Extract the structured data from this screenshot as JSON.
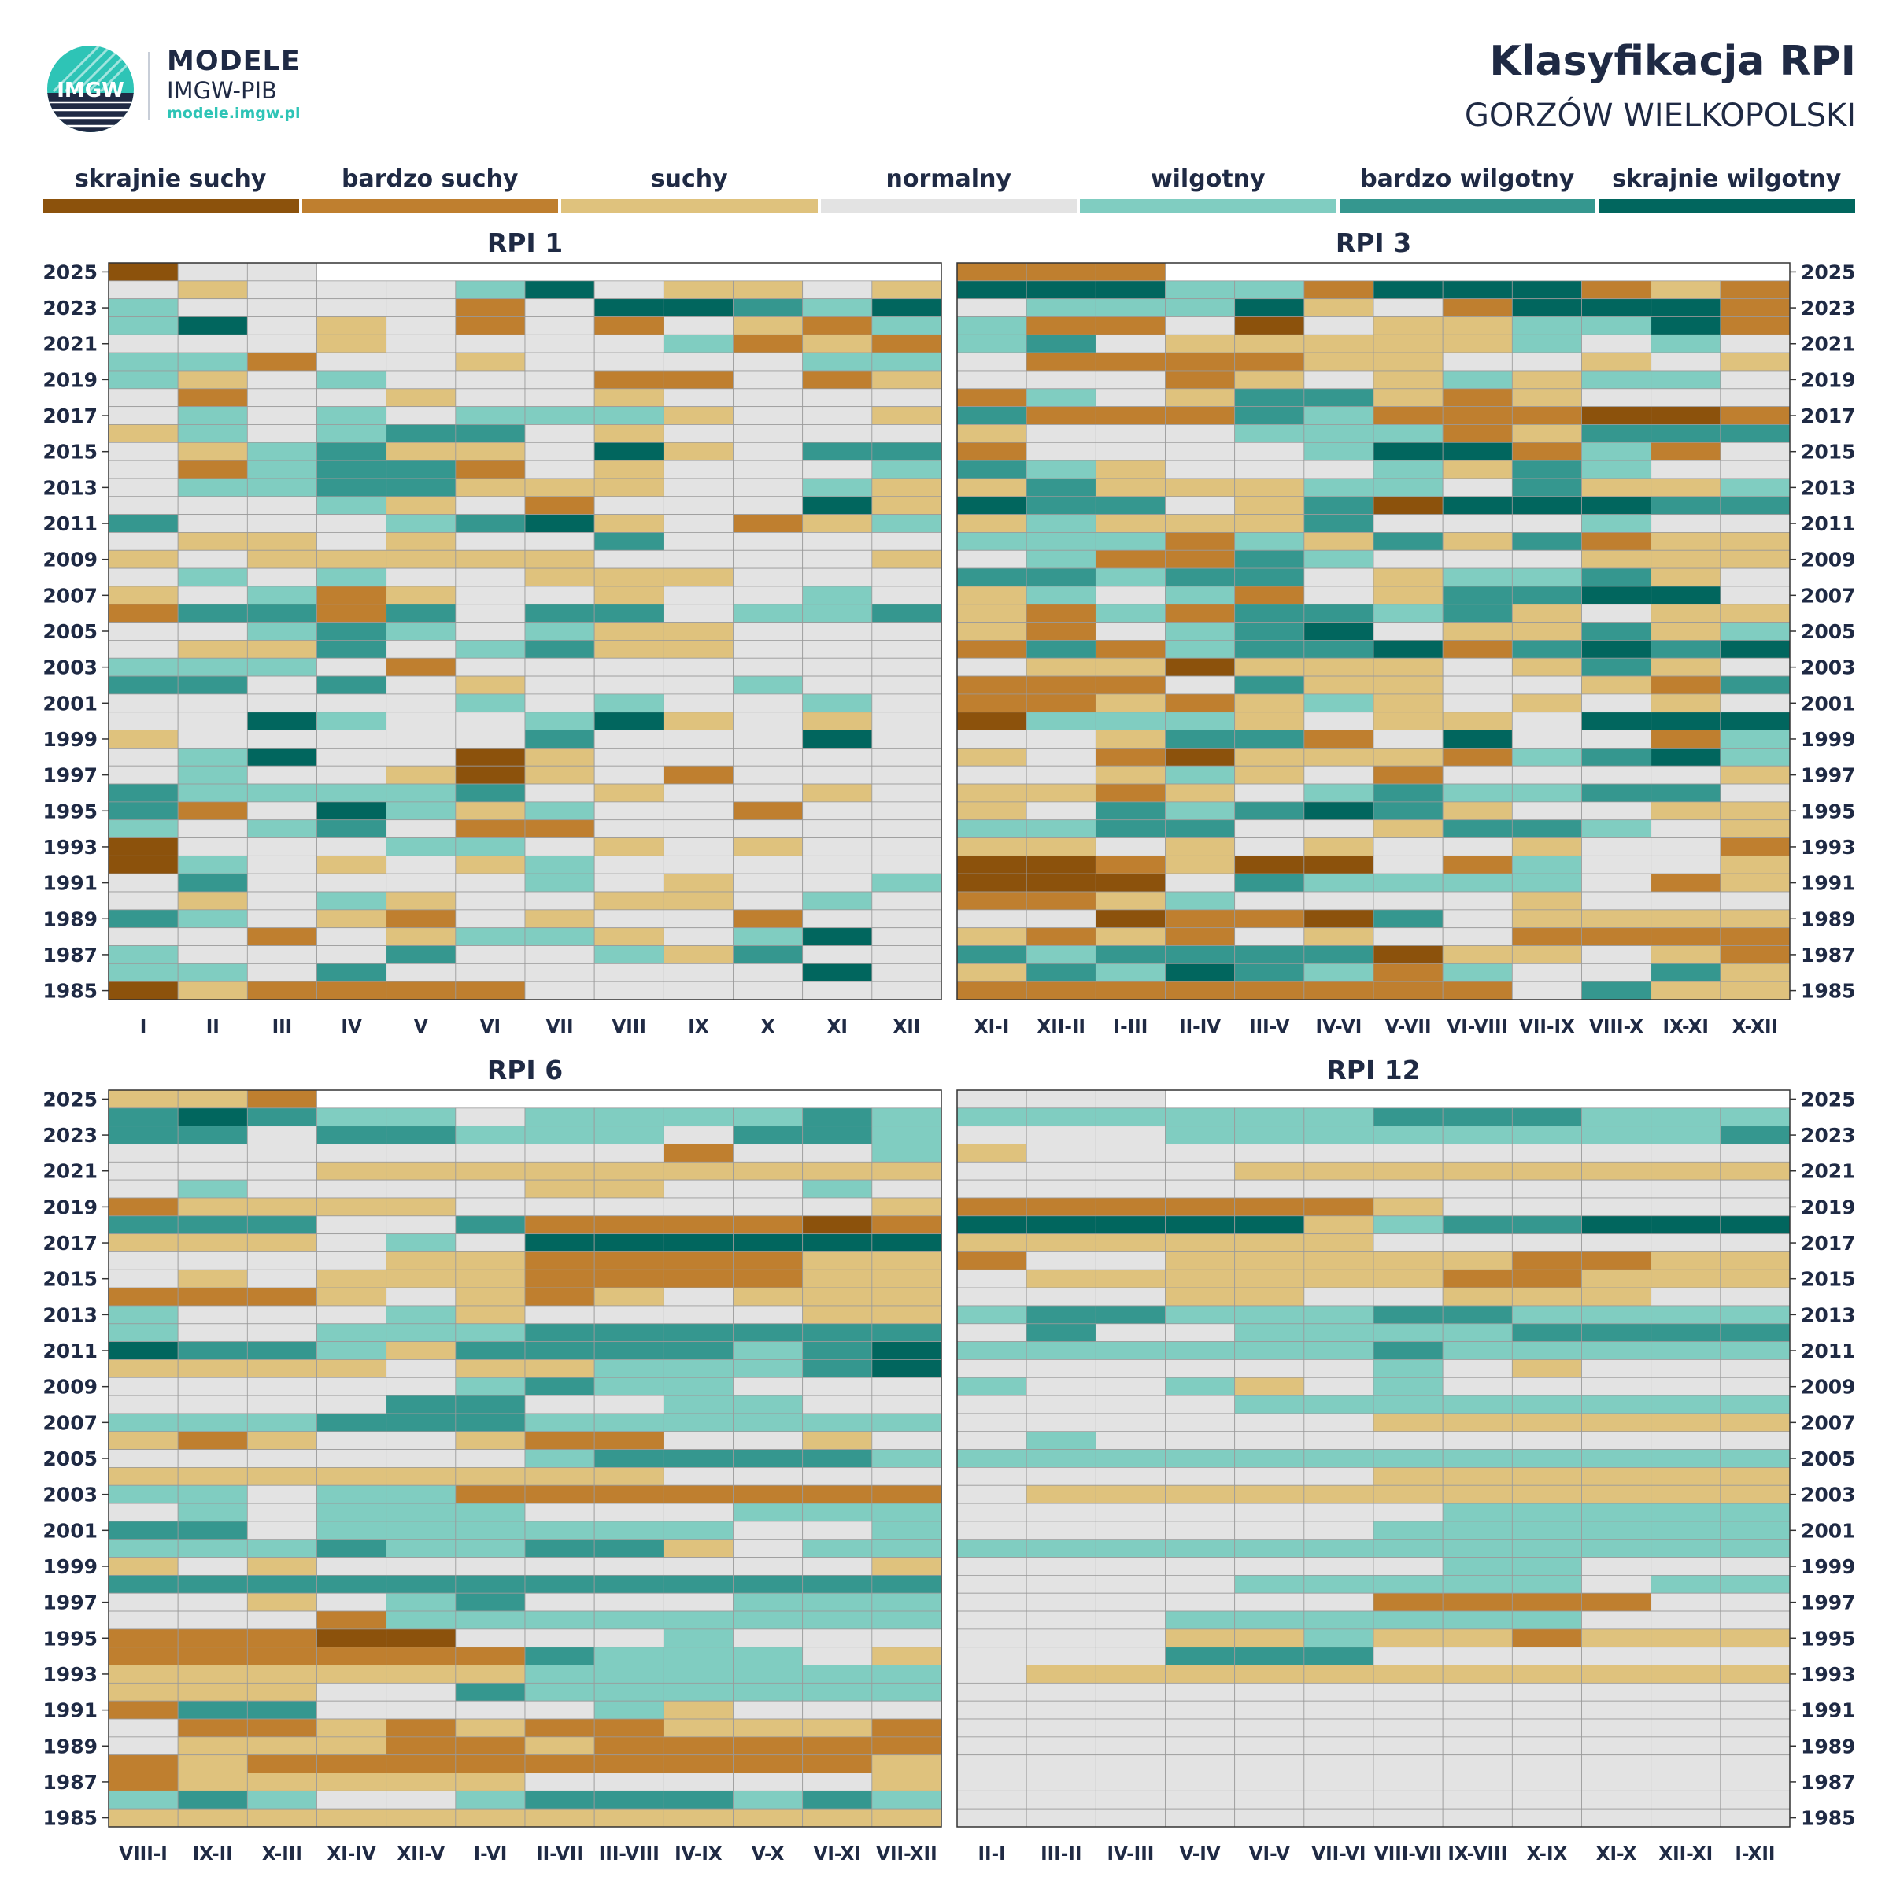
{
  "header": {
    "brand_title": "MODELE",
    "brand_subtitle": "IMGW-PIB",
    "brand_url": "modele.imgw.pl",
    "logo_text": "IMGW",
    "title": "Klasyfikacja RPI",
    "subtitle": "GORZÓW WIELKOPOLSKI"
  },
  "legend": [
    {
      "label": "skrajnie suchy",
      "color": "#8c520c"
    },
    {
      "label": "bardzo suchy",
      "color": "#bf7f2f"
    },
    {
      "label": "suchy",
      "color": "#dfc27d"
    },
    {
      "label": "normalny",
      "color": "#e3e3e3"
    },
    {
      "label": "wilgotny",
      "color": "#80cdc1"
    },
    {
      "label": "bardzo wilgotny",
      "color": "#35978f"
    },
    {
      "label": "skrajnie wilgotny",
      "color": "#01665e"
    }
  ],
  "chart_data": [
    {
      "type": "heatmap",
      "title": "RPI 1",
      "x_labels": [
        "I",
        "II",
        "III",
        "IV",
        "V",
        "VI",
        "VII",
        "VIII",
        "IX",
        "X",
        "XI",
        "XII"
      ],
      "years": [
        1985,
        1986,
        1987,
        1988,
        1989,
        1990,
        1991,
        1992,
        1993,
        1994,
        1995,
        1996,
        1997,
        1998,
        1999,
        2000,
        2001,
        2002,
        2003,
        2004,
        2005,
        2006,
        2007,
        2008,
        2009,
        2010,
        2011,
        2012,
        2013,
        2014,
        2015,
        2016,
        2017,
        2018,
        2019,
        2020,
        2021,
        2022,
        2023,
        2024,
        2025
      ],
      "y_tick_labels": [
        "1985",
        "1987",
        "1989",
        "1991",
        "1993",
        "1995",
        "1997",
        "1999",
        "2001",
        "2003",
        "2005",
        "2007",
        "2009",
        "2011",
        "2013",
        "2015",
        "2017",
        "2019",
        "2021",
        "2023",
        "2025"
      ],
      "classes": [
        "skrajnie suchy",
        "bardzo suchy",
        "suchy",
        "normalny",
        "wilgotny",
        "bardzo wilgotny",
        "skrajnie wilgotny"
      ],
      "rows_top_to_bottom": [
        "033",
        "323334632232",
        "433331366546",
        "463231313214",
        "333233334121",
        "441332333344",
        "423433311312",
        "313323323333",
        "343434442332",
        "243455323333",
        "324522362355",
        "314551323334",
        "344552223342",
        "333423133362",
        "533345623124",
        "322323353333",
        "232222233332",
        "343433222333",
        "234123323343",
        "155153553445",
        "334543422333",
        "322534522333",
        "444313333333",
        "553532333433",
        "333334343343",
        "336433462323",
        "233333533363",
        "346330233333",
        "343320231333",
        "544445323323",
        "513642433133",
        "434531133333",
        "033344323233",
        "043232433333",
        "353333432334",
        "323423322343",
        "543213233133",
        "331324423463",
        "433353342533",
        "443533333363",
        "021111333333"
      ]
    },
    {
      "type": "heatmap",
      "title": "RPI 3",
      "x_labels": [
        "XI-I",
        "XII-II",
        "I-III",
        "II-IV",
        "III-V",
        "IV-VI",
        "V-VII",
        "VI-VIII",
        "VII-IX",
        "VIII-X",
        "IX-XI",
        "X-XII"
      ],
      "years": [
        1985,
        1986,
        1987,
        1988,
        1989,
        1990,
        1991,
        1992,
        1993,
        1994,
        1995,
        1996,
        1997,
        1998,
        1999,
        2000,
        2001,
        2002,
        2003,
        2004,
        2005,
        2006,
        2007,
        2008,
        2009,
        2010,
        2011,
        2012,
        2013,
        2014,
        2015,
        2016,
        2017,
        2018,
        2019,
        2020,
        2021,
        2022,
        2023,
        2024,
        2025
      ],
      "y_tick_labels": [
        "1985",
        "1987",
        "1989",
        "1991",
        "1993",
        "1995",
        "1997",
        "1999",
        "2001",
        "2003",
        "2005",
        "2007",
        "2009",
        "2011",
        "2013",
        "2015",
        "2017",
        "2019",
        "2021",
        "2023",
        "2025"
      ],
      "classes": [
        "skrajnie suchy",
        "bardzo suchy",
        "suchy",
        "normalny",
        "wilgotny",
        "bardzo wilgotny",
        "skrajnie wilgotny"
      ],
      "rows_top_to_bottom": [
        "111",
        "666441666121",
        "344462316661",
        "411303224461",
        "453222224343",
        "311112233232",
        "333123242443",
        "143255212333",
        "511154111001",
        "233344412555",
        "133334661413",
        "542333425433",
        "252224435224",
        "655325066655",
        "242225333433",
        "444142525122",
        "341154333222",
        "554553244523",
        "243413255663",
        "214155452322",
        "213456322524",
        "151455615656",
        "322022232523",
        "111352233215",
        "112124232323",
        "044423223666",
        "332551363314",
        "231022214564",
        "332423133332",
        "221234544553",
        "235456523322",
        "445533255432",
        "223232332331",
        "001200314332",
        "000354444312",
        "112433332333",
        "330110532222",
        "212132331111",
        "545555022321",
        "254654143352",
        "111111113522"
      ]
    },
    {
      "type": "heatmap",
      "title": "RPI 6",
      "x_labels": [
        "VIII-I",
        "IX-II",
        "X-III",
        "XI-IV",
        "XII-V",
        "I-VI",
        "II-VII",
        "III-VIII",
        "IV-IX",
        "V-X",
        "VI-XI",
        "VII-XII"
      ],
      "years": [
        1985,
        1986,
        1987,
        1988,
        1989,
        1990,
        1991,
        1992,
        1993,
        1994,
        1995,
        1996,
        1997,
        1998,
        1999,
        2000,
        2001,
        2002,
        2003,
        2004,
        2005,
        2006,
        2007,
        2008,
        2009,
        2010,
        2011,
        2012,
        2013,
        2014,
        2015,
        2016,
        2017,
        2018,
        2019,
        2020,
        2021,
        2022,
        2023,
        2024,
        2025
      ],
      "y_tick_labels": [
        "1985",
        "1987",
        "1989",
        "1991",
        "1993",
        "1995",
        "1997",
        "1999",
        "2001",
        "2003",
        "2005",
        "2007",
        "2009",
        "2011",
        "2013",
        "2015",
        "2017",
        "2019",
        "2021",
        "2023",
        "2025"
      ],
      "classes": [
        "skrajnie suchy",
        "bardzo suchy",
        "suchy",
        "normalny",
        "wilgotny",
        "bardzo wilgotny",
        "skrajnie wilgotny"
      ],
      "rows_top_to_bottom": [
        "221",
        "565443444454",
        "553554443554",
        "333333331334",
        "333222222222",
        "343333223343",
        "122223333332",
        "555335111101",
        "222343666666",
        "333322111122",
        "323222111122",
        "111232123222",
        "433342333322",
        "433444555555",
        "655425555456",
        "222232244456",
        "333334544333",
        "333355334433",
        "444555444444",
        "212332113323",
        "333333455554",
        "222222223333",
        "443441111111",
        "343444333444",
        "553444444334",
        "444544552344",
        "232333333332",
        "555555555555",
        "332345333444",
        "333144444444",
        "111003334333",
        "111111544432",
        "222222444444",
        "222335444444",
        "155333342333",
        "311212112221",
        "322211211111",
        "121111111112",
        "122222333332",
        "454334555454",
        "222222222222"
      ]
    },
    {
      "type": "heatmap",
      "title": "RPI 12",
      "x_labels": [
        "II-I",
        "III-II",
        "IV-III",
        "V-IV",
        "VI-V",
        "VII-VI",
        "VIII-VII",
        "IX-VIII",
        "X-IX",
        "XI-X",
        "XII-XI",
        "I-XII"
      ],
      "years": [
        1985,
        1986,
        1987,
        1988,
        1989,
        1990,
        1991,
        1992,
        1993,
        1994,
        1995,
        1996,
        1997,
        1998,
        1999,
        2000,
        2001,
        2002,
        2003,
        2004,
        2005,
        2006,
        2007,
        2008,
        2009,
        2010,
        2011,
        2012,
        2013,
        2014,
        2015,
        2016,
        2017,
        2018,
        2019,
        2020,
        2021,
        2022,
        2023,
        2024,
        2025
      ],
      "y_tick_labels": [
        "1985",
        "1987",
        "1989",
        "1991",
        "1993",
        "1995",
        "1997",
        "1999",
        "2001",
        "2003",
        "2005",
        "2007",
        "2009",
        "2011",
        "2013",
        "2015",
        "2017",
        "2019",
        "2021",
        "2023",
        "2025"
      ],
      "classes": [
        "skrajnie suchy",
        "bardzo suchy",
        "suchy",
        "normalny",
        "wilgotny",
        "bardzo wilgotny",
        "skrajnie wilgotny"
      ],
      "rows_top_to_bottom": [
        "333",
        "444444555444",
        "333444444445",
        "233333333333",
        "333322222222",
        "333333333333",
        "111111233333",
        "666662455666",
        "222222333333",
        "133222221122",
        "322222211222",
        "333223322233",
        "455444554444",
        "353344445555",
        "444444544444",
        "333333432333",
        "433423433333",
        "333344444444",
        "333333222222",
        "343333333333",
        "444444444444",
        "333333222222",
        "322222222222",
        "333333344444",
        "333333444444",
        "444444444444",
        "333333344333",
        "333344444344",
        "333333111133",
        "333444444333",
        "333224221222",
        "333555333333",
        "322222222222",
        "333333333333",
        "333333333333",
        "333333333333",
        "333333333333",
        "333333333333",
        "333333333333",
        "333333333333",
        "333333333333"
      ]
    }
  ]
}
